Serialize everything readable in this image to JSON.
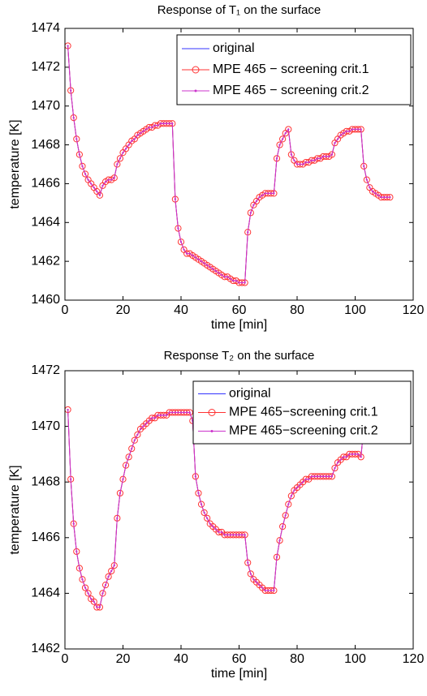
{
  "chart_data": [
    {
      "type": "line",
      "title": "Response of T₁ on the surface",
      "xlabel": "time [min]",
      "ylabel": "temperature [K]",
      "xlim": [
        0,
        120
      ],
      "xticks": [
        0,
        20,
        40,
        60,
        80,
        100,
        120
      ],
      "ylim": [
        1460,
        1474
      ],
      "yticks": [
        1460,
        1462,
        1464,
        1466,
        1468,
        1470,
        1472,
        1474
      ],
      "grid": false,
      "legend": "northeast",
      "x": [
        1,
        2,
        3,
        4,
        5,
        6,
        7,
        8,
        9,
        10,
        11,
        12,
        13,
        14,
        15,
        16,
        17,
        18,
        19,
        20,
        21,
        22,
        23,
        24,
        25,
        26,
        27,
        28,
        29,
        30,
        31,
        32,
        33,
        34,
        35,
        36,
        37,
        38,
        39,
        40,
        41,
        42,
        43,
        44,
        45,
        46,
        47,
        48,
        49,
        50,
        51,
        52,
        53,
        54,
        55,
        56,
        57,
        58,
        59,
        60,
        61,
        62,
        63,
        64,
        65,
        66,
        67,
        68,
        69,
        70,
        71,
        72,
        73,
        74,
        75,
        76,
        77,
        78,
        79,
        80,
        81,
        82,
        83,
        84,
        85,
        86,
        87,
        88,
        89,
        90,
        91,
        92,
        93,
        94,
        95,
        96,
        97,
        98,
        99,
        100,
        101,
        102,
        103,
        104,
        105,
        106,
        107,
        108,
        109,
        110,
        111,
        112
      ],
      "series": [
        {
          "name": "original",
          "color": "#3333ff",
          "marker": "none",
          "values": [
            1473.1,
            1470.8,
            1469.4,
            1468.3,
            1467.5,
            1466.9,
            1466.5,
            1466.2,
            1466.0,
            1465.8,
            1465.6,
            1465.4,
            1465.9,
            1466.1,
            1466.2,
            1466.2,
            1466.3,
            1467.0,
            1467.3,
            1467.6,
            1467.8,
            1468.0,
            1468.2,
            1468.3,
            1468.5,
            1468.6,
            1468.7,
            1468.8,
            1468.9,
            1468.9,
            1469.0,
            1469.0,
            1469.1,
            1469.1,
            1469.1,
            1469.1,
            1469.1,
            1465.2,
            1463.7,
            1463.0,
            1462.6,
            1462.4,
            1462.4,
            1462.3,
            1462.2,
            1462.1,
            1462.0,
            1461.9,
            1461.8,
            1461.7,
            1461.6,
            1461.5,
            1461.4,
            1461.3,
            1461.2,
            1461.2,
            1461.1,
            1461.0,
            1461.0,
            1460.9,
            1460.9,
            1460.9,
            1463.5,
            1464.5,
            1464.9,
            1465.1,
            1465.3,
            1465.4,
            1465.5,
            1465.5,
            1465.5,
            1465.5,
            1467.3,
            1468.0,
            1468.3,
            1468.6,
            1468.8,
            1467.5,
            1467.2,
            1467.0,
            1467.0,
            1467.0,
            1467.1,
            1467.1,
            1467.2,
            1467.2,
            1467.3,
            1467.3,
            1467.4,
            1467.4,
            1467.4,
            1467.5,
            1468.1,
            1468.3,
            1468.5,
            1468.6,
            1468.7,
            1468.7,
            1468.8,
            1468.8,
            1468.8,
            1468.8,
            1466.9,
            1466.2,
            1465.8,
            1465.6,
            1465.5,
            1465.4,
            1465.3,
            1465.3,
            1465.3,
            1465.3
          ]
        },
        {
          "name": "MPE 465 − screening crit.1",
          "color": "#ff3333",
          "marker": "circle",
          "values": [
            1473.1,
            1470.8,
            1469.4,
            1468.3,
            1467.5,
            1466.9,
            1466.5,
            1466.2,
            1466.0,
            1465.8,
            1465.6,
            1465.4,
            1465.9,
            1466.1,
            1466.2,
            1466.2,
            1466.3,
            1467.0,
            1467.3,
            1467.6,
            1467.8,
            1468.0,
            1468.2,
            1468.3,
            1468.5,
            1468.6,
            1468.7,
            1468.8,
            1468.9,
            1468.9,
            1469.0,
            1469.0,
            1469.1,
            1469.1,
            1469.1,
            1469.1,
            1469.1,
            1465.2,
            1463.7,
            1463.0,
            1462.6,
            1462.4,
            1462.4,
            1462.3,
            1462.2,
            1462.1,
            1462.0,
            1461.9,
            1461.8,
            1461.7,
            1461.6,
            1461.5,
            1461.4,
            1461.3,
            1461.2,
            1461.2,
            1461.1,
            1461.0,
            1461.0,
            1460.9,
            1460.9,
            1460.9,
            1463.5,
            1464.5,
            1464.9,
            1465.1,
            1465.3,
            1465.4,
            1465.5,
            1465.5,
            1465.5,
            1465.5,
            1467.3,
            1468.0,
            1468.3,
            1468.6,
            1468.8,
            1467.5,
            1467.2,
            1467.0,
            1467.0,
            1467.0,
            1467.1,
            1467.1,
            1467.2,
            1467.2,
            1467.3,
            1467.3,
            1467.4,
            1467.4,
            1467.4,
            1467.5,
            1468.1,
            1468.3,
            1468.5,
            1468.6,
            1468.7,
            1468.7,
            1468.8,
            1468.8,
            1468.8,
            1468.8,
            1466.9,
            1466.2,
            1465.8,
            1465.6,
            1465.5,
            1465.4,
            1465.3,
            1465.3,
            1465.3,
            1465.3
          ]
        },
        {
          "name": "MPE 465 − screening crit.2",
          "color": "#cc33cc",
          "marker": "dot",
          "values": [
            1473.1,
            1470.8,
            1469.4,
            1468.3,
            1467.5,
            1466.9,
            1466.5,
            1466.2,
            1466.0,
            1465.8,
            1465.6,
            1465.4,
            1465.9,
            1466.1,
            1466.2,
            1466.2,
            1466.3,
            1467.0,
            1467.3,
            1467.6,
            1467.8,
            1468.0,
            1468.2,
            1468.3,
            1468.5,
            1468.6,
            1468.7,
            1468.8,
            1468.9,
            1468.9,
            1469.0,
            1469.0,
            1469.1,
            1469.1,
            1469.1,
            1469.1,
            1469.1,
            1465.2,
            1463.7,
            1463.0,
            1462.6,
            1462.4,
            1462.4,
            1462.3,
            1462.2,
            1462.1,
            1462.0,
            1461.9,
            1461.8,
            1461.7,
            1461.6,
            1461.5,
            1461.4,
            1461.3,
            1461.2,
            1461.2,
            1461.1,
            1461.0,
            1461.0,
            1460.9,
            1460.9,
            1460.9,
            1463.5,
            1464.5,
            1464.9,
            1465.1,
            1465.3,
            1465.4,
            1465.5,
            1465.5,
            1465.5,
            1465.5,
            1467.3,
            1468.0,
            1468.3,
            1468.6,
            1468.8,
            1467.5,
            1467.2,
            1467.0,
            1467.0,
            1467.0,
            1467.1,
            1467.1,
            1467.2,
            1467.2,
            1467.3,
            1467.3,
            1467.4,
            1467.4,
            1467.4,
            1467.5,
            1468.1,
            1468.3,
            1468.5,
            1468.6,
            1468.7,
            1468.7,
            1468.8,
            1468.8,
            1468.8,
            1468.8,
            1466.9,
            1466.2,
            1465.8,
            1465.6,
            1465.5,
            1465.4,
            1465.3,
            1465.3,
            1465.3,
            1465.3
          ]
        }
      ]
    },
    {
      "type": "line",
      "title": "Response T₂ on the surface",
      "xlabel": "time [min]",
      "ylabel": "temperature [K]",
      "xlim": [
        0,
        120
      ],
      "xticks": [
        0,
        20,
        40,
        60,
        80,
        100,
        120
      ],
      "ylim": [
        1462,
        1472
      ],
      "yticks": [
        1462,
        1464,
        1466,
        1468,
        1470,
        1472
      ],
      "grid": false,
      "legend": "northeast",
      "x": [
        1,
        2,
        3,
        4,
        5,
        6,
        7,
        8,
        9,
        10,
        11,
        12,
        13,
        14,
        15,
        16,
        17,
        18,
        19,
        20,
        21,
        22,
        23,
        24,
        25,
        26,
        27,
        28,
        29,
        30,
        31,
        32,
        33,
        34,
        35,
        36,
        37,
        38,
        39,
        40,
        41,
        42,
        43,
        44,
        45,
        46,
        47,
        48,
        49,
        50,
        51,
        52,
        53,
        54,
        55,
        56,
        57,
        58,
        59,
        60,
        61,
        62,
        63,
        64,
        65,
        66,
        67,
        68,
        69,
        70,
        71,
        72,
        73,
        74,
        75,
        76,
        77,
        78,
        79,
        80,
        81,
        82,
        83,
        84,
        85,
        86,
        87,
        88,
        89,
        90,
        91,
        92,
        93,
        94,
        95,
        96,
        97,
        98,
        99,
        100,
        101,
        102,
        103,
        104,
        105,
        106,
        107,
        108,
        109,
        110,
        111,
        112
      ],
      "series": [
        {
          "name": "original",
          "color": "#3333ff",
          "marker": "none",
          "values": [
            1470.6,
            1468.1,
            1466.5,
            1465.5,
            1464.9,
            1464.5,
            1464.2,
            1464.0,
            1463.8,
            1463.7,
            1463.5,
            1463.5,
            1464.0,
            1464.3,
            1464.6,
            1464.8,
            1465.0,
            1466.7,
            1467.6,
            1468.1,
            1468.6,
            1468.9,
            1469.2,
            1469.5,
            1469.7,
            1469.9,
            1470.0,
            1470.1,
            1470.2,
            1470.3,
            1470.3,
            1470.4,
            1470.4,
            1470.4,
            1470.4,
            1470.5,
            1470.5,
            1470.5,
            1470.5,
            1470.5,
            1470.5,
            1470.5,
            1470.5,
            1470.2,
            1468.2,
            1467.6,
            1467.2,
            1466.9,
            1466.7,
            1466.5,
            1466.4,
            1466.3,
            1466.2,
            1466.2,
            1466.1,
            1466.1,
            1466.1,
            1466.1,
            1466.1,
            1466.1,
            1466.1,
            1466.1,
            1465.1,
            1464.7,
            1464.5,
            1464.4,
            1464.3,
            1464.2,
            1464.1,
            1464.1,
            1464.1,
            1464.1,
            1465.3,
            1465.9,
            1466.4,
            1466.8,
            1467.2,
            1467.5,
            1467.7,
            1467.8,
            1467.9,
            1468.0,
            1468.1,
            1468.1,
            1468.2,
            1468.2,
            1468.2,
            1468.2,
            1468.2,
            1468.2,
            1468.2,
            1468.2,
            1468.5,
            1468.7,
            1468.8,
            1468.9,
            1468.9,
            1469.0,
            1469.0,
            1469.0,
            1469.0,
            1468.9,
            1470.0,
            1470.5,
            1470.8,
            1471.0,
            1471.1,
            1471.2,
            1471.3,
            1471.3,
            1471.4,
            1471.4
          ]
        },
        {
          "name": "MPE 465−screening crit.1",
          "color": "#ff3333",
          "marker": "circle",
          "values": [
            1470.6,
            1468.1,
            1466.5,
            1465.5,
            1464.9,
            1464.5,
            1464.2,
            1464.0,
            1463.8,
            1463.7,
            1463.5,
            1463.5,
            1464.0,
            1464.3,
            1464.6,
            1464.8,
            1465.0,
            1466.7,
            1467.6,
            1468.1,
            1468.6,
            1468.9,
            1469.2,
            1469.5,
            1469.7,
            1469.9,
            1470.0,
            1470.1,
            1470.2,
            1470.3,
            1470.3,
            1470.4,
            1470.4,
            1470.4,
            1470.4,
            1470.5,
            1470.5,
            1470.5,
            1470.5,
            1470.5,
            1470.5,
            1470.5,
            1470.5,
            1470.2,
            1468.2,
            1467.6,
            1467.2,
            1466.9,
            1466.7,
            1466.5,
            1466.4,
            1466.3,
            1466.2,
            1466.2,
            1466.1,
            1466.1,
            1466.1,
            1466.1,
            1466.1,
            1466.1,
            1466.1,
            1466.1,
            1465.1,
            1464.7,
            1464.5,
            1464.4,
            1464.3,
            1464.2,
            1464.1,
            1464.1,
            1464.1,
            1464.1,
            1465.3,
            1465.9,
            1466.4,
            1466.8,
            1467.2,
            1467.5,
            1467.7,
            1467.8,
            1467.9,
            1468.0,
            1468.1,
            1468.1,
            1468.2,
            1468.2,
            1468.2,
            1468.2,
            1468.2,
            1468.2,
            1468.2,
            1468.2,
            1468.5,
            1468.7,
            1468.8,
            1468.9,
            1468.9,
            1469.0,
            1469.0,
            1469.0,
            1469.0,
            1468.9,
            1470.0,
            1470.5,
            1470.8,
            1471.0,
            1471.1,
            1471.2,
            1471.3,
            1471.3,
            1471.4,
            1471.4
          ]
        },
        {
          "name": "MPE 465−screening crit.2",
          "color": "#cc33cc",
          "marker": "dot",
          "values": [
            1470.6,
            1468.1,
            1466.5,
            1465.5,
            1464.9,
            1464.5,
            1464.2,
            1464.0,
            1463.8,
            1463.7,
            1463.5,
            1463.5,
            1464.0,
            1464.3,
            1464.6,
            1464.8,
            1465.0,
            1466.7,
            1467.6,
            1468.1,
            1468.6,
            1468.9,
            1469.2,
            1469.5,
            1469.7,
            1469.9,
            1470.0,
            1470.1,
            1470.2,
            1470.3,
            1470.3,
            1470.4,
            1470.4,
            1470.4,
            1470.4,
            1470.5,
            1470.5,
            1470.5,
            1470.5,
            1470.5,
            1470.5,
            1470.5,
            1470.5,
            1470.2,
            1468.2,
            1467.6,
            1467.2,
            1466.9,
            1466.7,
            1466.5,
            1466.4,
            1466.3,
            1466.2,
            1466.2,
            1466.1,
            1466.1,
            1466.1,
            1466.1,
            1466.1,
            1466.1,
            1466.1,
            1466.1,
            1465.1,
            1464.7,
            1464.5,
            1464.4,
            1464.3,
            1464.2,
            1464.1,
            1464.1,
            1464.1,
            1464.1,
            1465.3,
            1465.9,
            1466.4,
            1466.8,
            1467.2,
            1467.5,
            1467.7,
            1467.8,
            1467.9,
            1468.0,
            1468.1,
            1468.1,
            1468.2,
            1468.2,
            1468.2,
            1468.2,
            1468.2,
            1468.2,
            1468.2,
            1468.2,
            1468.5,
            1468.7,
            1468.8,
            1468.9,
            1468.9,
            1469.0,
            1469.0,
            1469.0,
            1469.0,
            1468.9,
            1470.0,
            1470.5,
            1470.8,
            1471.0,
            1471.1,
            1471.2,
            1471.3,
            1471.3,
            1471.4,
            1471.4
          ]
        }
      ]
    }
  ]
}
